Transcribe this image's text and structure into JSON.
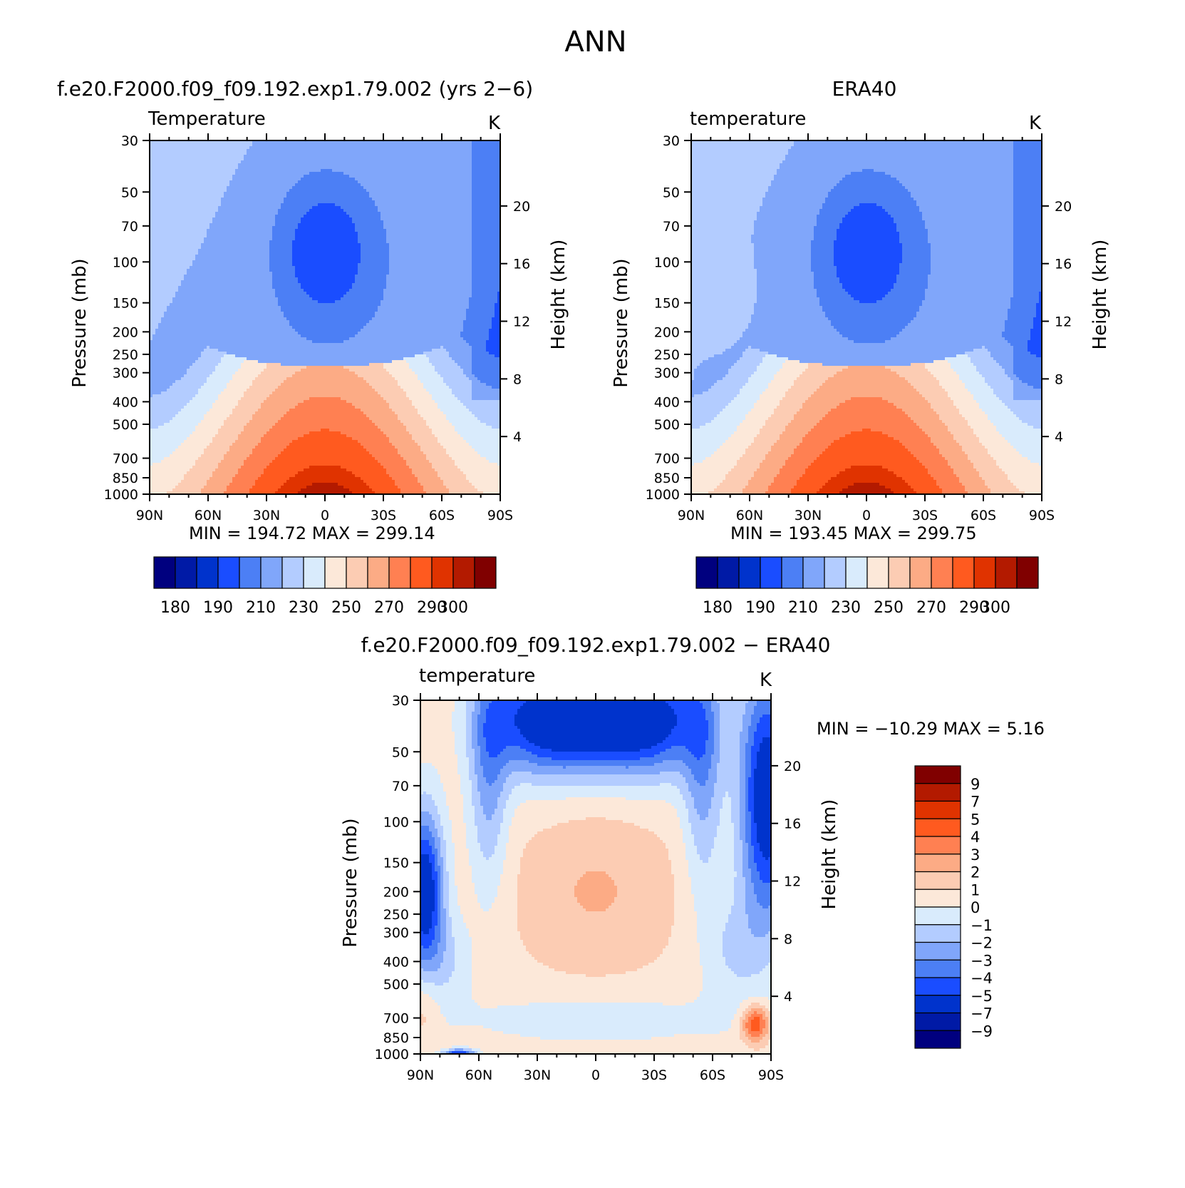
{
  "title": "ANN",
  "colors": {
    "abs_levels": [
      "#00007f",
      "#001aa6",
      "#0033cc",
      "#1a4dff",
      "#4c7ff5",
      "#80a6fa",
      "#b3ccff",
      "#d9ebfc",
      "#fce8d9",
      "#fcccb3",
      "#fcab85",
      "#ff8052",
      "#ff5a1f",
      "#e03300",
      "#b31a00",
      "#800000"
    ],
    "diff_levels": [
      "#00007f",
      "#001aa6",
      "#0033cc",
      "#1a4dff",
      "#4c7ff5",
      "#80a6fa",
      "#b3ccff",
      "#d9ebfc",
      "#fce8d9",
      "#fcccb3",
      "#fcab85",
      "#ff8052",
      "#ff5a1f",
      "#e03300",
      "#b31a00",
      "#800000"
    ]
  },
  "panels": {
    "model": {
      "title": "f.e20.F2000.f09_f09.192.exp1.79.002 (yrs 2−6)",
      "left_label": "Temperature",
      "units": "K",
      "stats": "MIN  =  194.72    MAX  =  299.14"
    },
    "obs": {
      "title": "ERA40",
      "left_label": "temperature",
      "units": "K",
      "stats": "MIN  =  193.45    MAX  =  299.75"
    },
    "diff": {
      "title": "f.e20.F2000.f09_f09.192.exp1.79.002  −  ERA40",
      "left_label": "temperature",
      "units": "K",
      "stats": "MIN  =  −10.29    MAX  =     5.16"
    }
  },
  "axes": {
    "xlabel": "",
    "ylabel_left": "Pressure  (mb)",
    "ylabel_right": "Height  (km)",
    "x_ticks": [
      "90N",
      "60N",
      "30N",
      "0",
      "30S",
      "60S",
      "90S"
    ],
    "pressure_ticks": [
      "30",
      "50",
      "70",
      "100",
      "150",
      "200",
      "250",
      "300",
      "400",
      "500",
      "700",
      "850",
      "1000"
    ],
    "height_ticks": [
      "20",
      "16",
      "12",
      "8",
      "4"
    ]
  },
  "colorbars": {
    "abs_labels": [
      "180",
      "190",
      "210",
      "230",
      "250",
      "270",
      "290",
      "300"
    ],
    "diff_labels": [
      "9",
      "7",
      "5",
      "4",
      "3",
      "2",
      "1",
      "0",
      "−1",
      "−2",
      "−3",
      "−4",
      "−5",
      "−7",
      "−9"
    ]
  },
  "chart_data": [
    {
      "type": "heatmap",
      "title": "f.e20.F2000.f09_f09.192.exp1.79.002 (yrs 2−6)",
      "subtitle": "Temperature",
      "units": "K",
      "xlabel": "",
      "ylabel": "Pressure  (mb)",
      "y2label": "Height  (km)",
      "x_range": [
        "90N",
        "90S"
      ],
      "y_range": [
        30,
        1000
      ],
      "y_scale": "log",
      "contour_levels": [
        180,
        185,
        190,
        200,
        210,
        220,
        230,
        240,
        250,
        260,
        270,
        280,
        290,
        295,
        300
      ],
      "min": 194.72,
      "max": 299.14
    },
    {
      "type": "heatmap",
      "title": "ERA40",
      "subtitle": "temperature",
      "units": "K",
      "xlabel": "",
      "ylabel": "Pressure  (mb)",
      "y2label": "Height  (km)",
      "x_range": [
        "90N",
        "90S"
      ],
      "y_range": [
        30,
        1000
      ],
      "y_scale": "log",
      "contour_levels": [
        180,
        185,
        190,
        200,
        210,
        220,
        230,
        240,
        250,
        260,
        270,
        280,
        290,
        295,
        300
      ],
      "min": 193.45,
      "max": 299.75
    },
    {
      "type": "heatmap",
      "title": "f.e20.F2000.f09_f09.192.exp1.79.002  −  ERA40",
      "subtitle": "temperature",
      "units": "K",
      "xlabel": "",
      "ylabel": "Pressure  (mb)",
      "y2label": "Height  (km)",
      "x_range": [
        "90N",
        "90S"
      ],
      "y_range": [
        30,
        1000
      ],
      "y_scale": "log",
      "contour_levels": [
        -9,
        -7,
        -5,
        -4,
        -3,
        -2,
        -1,
        0,
        1,
        2,
        3,
        4,
        5,
        7,
        9
      ],
      "min": -10.29,
      "max": 5.16
    }
  ]
}
